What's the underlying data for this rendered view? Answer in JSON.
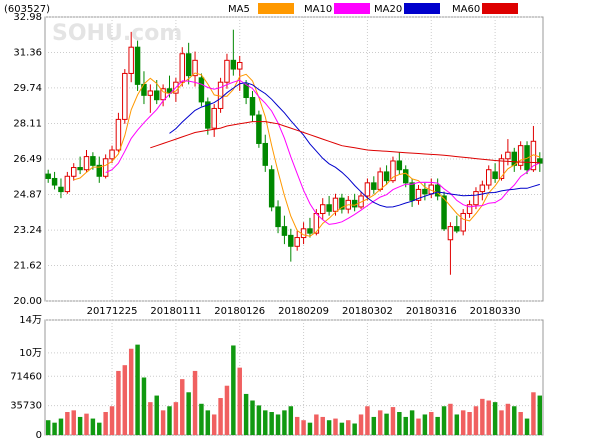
{
  "chart_data": {
    "type": "candlestick",
    "code": "(603527)",
    "watermark": "SOHU.com",
    "up_color": "#e00000",
    "down_color": "#008800",
    "categories": [
      null,
      null,
      null,
      null,
      null,
      null,
      null,
      null,
      null,
      null,
      "20171225",
      null,
      null,
      null,
      null,
      null,
      null,
      null,
      null,
      null,
      "20180111",
      null,
      null,
      null,
      null,
      null,
      null,
      null,
      null,
      null,
      "20180126",
      null,
      null,
      null,
      null,
      null,
      null,
      null,
      null,
      null,
      "20180209",
      null,
      null,
      null,
      null,
      null,
      null,
      null,
      null,
      null,
      "20180302",
      null,
      null,
      null,
      null,
      null,
      null,
      null,
      null,
      null,
      "20180316",
      null,
      null,
      null,
      null,
      null,
      null,
      null,
      null,
      null,
      "20180330",
      null,
      null,
      null,
      null,
      null,
      null,
      null
    ],
    "open": [
      25.8,
      25.6,
      25.2,
      25.0,
      25.7,
      26.1,
      26.0,
      26.6,
      26.2,
      25.7,
      26.5,
      26.9,
      28.3,
      30.4,
      31.6,
      29.9,
      29.4,
      29.6,
      29.2,
      29.7,
      29.5,
      30.0,
      31.3,
      30.3,
      30.2,
      29.1,
      27.9,
      28.8,
      30.0,
      31.0,
      30.6,
      29.9,
      29.3,
      28.5,
      27.2,
      26.0,
      24.3,
      23.4,
      23.0,
      22.5,
      22.9,
      23.3,
      23.1,
      24.0,
      24.4,
      24.1,
      24.7,
      24.2,
      24.6,
      24.3,
      24.8,
      25.4,
      25.1,
      25.9,
      25.5,
      26.4,
      26.0,
      25.4,
      24.6,
      25.1,
      24.9,
      25.3,
      24.8,
      22.8,
      23.4,
      23.2,
      24.0,
      24.4,
      25.0,
      25.3,
      25.9,
      25.6,
      26.5,
      26.8,
      26.2,
      27.1,
      26.0,
      26.5
    ],
    "high": [
      26.0,
      25.9,
      25.6,
      25.9,
      26.3,
      26.6,
      26.9,
      26.8,
      26.6,
      26.7,
      27.1,
      28.6,
      30.6,
      32.3,
      31.9,
      30.5,
      29.9,
      30.1,
      29.9,
      30.3,
      30.2,
      31.6,
      31.8,
      31.4,
      30.4,
      29.3,
      29.0,
      30.2,
      31.3,
      32.4,
      31.2,
      30.1,
      29.6,
      28.7,
      27.6,
      26.2,
      24.6,
      23.9,
      23.3,
      23.2,
      23.6,
      23.8,
      24.2,
      24.7,
      24.8,
      24.9,
      24.9,
      24.8,
      24.9,
      25.0,
      25.6,
      25.7,
      26.1,
      26.2,
      26.6,
      26.8,
      26.2,
      25.6,
      25.3,
      25.4,
      25.6,
      25.6,
      25.0,
      23.6,
      23.9,
      24.2,
      24.6,
      25.2,
      25.5,
      26.2,
      26.3,
      26.7,
      27.4,
      27.0,
      27.3,
      27.3,
      28.0,
      26.8
    ],
    "low": [
      25.4,
      25.1,
      24.7,
      24.9,
      25.5,
      25.8,
      25.9,
      26.0,
      25.4,
      25.6,
      26.3,
      26.8,
      28.1,
      30.0,
      29.6,
      29.0,
      28.6,
      29.0,
      28.9,
      29.3,
      29.1,
      29.8,
      29.9,
      29.8,
      28.9,
      27.6,
      27.5,
      28.6,
      29.7,
      30.3,
      29.6,
      29.0,
      28.2,
      27.0,
      25.9,
      24.1,
      23.1,
      22.6,
      21.8,
      22.3,
      22.6,
      22.9,
      23.0,
      23.7,
      23.9,
      23.9,
      24.0,
      24.0,
      24.1,
      24.2,
      24.6,
      24.9,
      25.0,
      25.3,
      25.4,
      25.8,
      25.2,
      24.3,
      24.4,
      24.6,
      24.7,
      24.6,
      23.2,
      21.2,
      23.1,
      23.0,
      23.8,
      24.2,
      24.6,
      25.1,
      25.4,
      25.5,
      26.2,
      25.9,
      26.0,
      25.8,
      25.9,
      25.9
    ],
    "close": [
      25.6,
      25.3,
      25.0,
      25.7,
      26.1,
      26.0,
      26.6,
      26.2,
      25.7,
      26.5,
      26.9,
      28.3,
      30.4,
      31.6,
      29.9,
      29.4,
      29.6,
      29.2,
      29.7,
      29.5,
      30.0,
      31.3,
      30.3,
      31.0,
      29.1,
      27.9,
      28.8,
      30.0,
      31.0,
      30.6,
      30.9,
      29.3,
      28.5,
      27.2,
      26.2,
      24.3,
      23.4,
      23.0,
      22.5,
      22.9,
      23.3,
      23.1,
      24.0,
      24.4,
      24.1,
      24.7,
      24.2,
      24.6,
      24.3,
      24.8,
      25.4,
      25.1,
      25.9,
      25.5,
      26.4,
      26.0,
      25.4,
      24.6,
      25.1,
      24.9,
      25.3,
      24.8,
      23.3,
      23.4,
      23.2,
      24.0,
      24.4,
      25.0,
      25.3,
      26.0,
      25.6,
      26.5,
      26.8,
      26.2,
      27.1,
      26.0,
      27.3,
      26.3
    ],
    "ylim": [
      20,
      32.98
    ],
    "yticks": [
      {
        "value": 20,
        "label": "20.00"
      },
      21.62,
      23.24,
      24.87,
      26.49,
      28.11,
      29.74,
      31.36,
      32.98
    ],
    "series": [
      {
        "name": "MA5",
        "color": "#ff9900",
        "values": [
          null,
          null,
          null,
          null,
          25.54,
          25.62,
          25.88,
          26.12,
          26.12,
          26.2,
          26.38,
          26.72,
          27.56,
          28.74,
          29.42,
          29.92,
          30.18,
          29.94,
          29.56,
          29.48,
          29.6,
          29.94,
          30.16,
          30.42,
          30.34,
          29.92,
          29.42,
          29.36,
          29.36,
          29.66,
          30.26,
          30.36,
          30.06,
          29.3,
          28.42,
          27.1,
          25.92,
          24.82,
          23.88,
          23.22,
          23.02,
          22.96,
          23.16,
          23.54,
          23.78,
          24.06,
          24.28,
          24.4,
          24.38,
          24.52,
          24.66,
          24.84,
          25.1,
          25.34,
          25.66,
          25.78,
          25.84,
          25.58,
          25.5,
          25.2,
          25.06,
          24.94,
          24.68,
          24.34,
          24.0,
          23.74,
          23.66,
          24.0,
          24.38,
          24.94,
          25.26,
          25.68,
          26.04,
          26.22,
          26.44,
          26.52,
          26.68,
          26.58
        ]
      },
      {
        "name": "MA10",
        "color": "#ff00ff",
        "values": [
          null,
          null,
          null,
          null,
          null,
          null,
          null,
          null,
          null,
          25.87,
          26.0,
          26.3,
          26.84,
          27.43,
          27.81,
          28.15,
          28.45,
          28.75,
          29.15,
          29.45,
          29.76,
          30.06,
          30.05,
          29.99,
          29.91,
          29.76,
          29.68,
          29.76,
          29.89,
          30.0,
          30.09,
          29.89,
          29.71,
          29.33,
          29.04,
          28.68,
          28.14,
          27.44,
          26.59,
          25.82,
          25.06,
          24.44,
          23.99,
          23.71,
          23.5,
          23.54,
          23.62,
          23.78,
          23.96,
          24.15,
          24.36,
          24.56,
          24.75,
          24.86,
          25.09,
          25.22,
          25.34,
          25.34,
          25.42,
          25.43,
          25.42,
          25.39,
          25.13,
          24.92,
          24.6,
          24.4,
          24.3,
          24.34,
          24.36,
          24.47,
          24.5,
          24.67,
          25.02,
          25.3,
          25.69,
          25.89,
          26.18,
          26.31
        ]
      },
      {
        "name": "MA20",
        "color": "#0000cc",
        "values": [
          null,
          null,
          null,
          null,
          null,
          null,
          null,
          null,
          null,
          null,
          null,
          null,
          null,
          null,
          null,
          null,
          null,
          null,
          null,
          27.66,
          27.88,
          28.18,
          28.45,
          28.71,
          28.86,
          28.96,
          29.07,
          29.26,
          29.52,
          29.73,
          29.93,
          29.98,
          29.88,
          29.66,
          29.48,
          29.22,
          28.91,
          28.6,
          28.24,
          27.91,
          27.58,
          27.17,
          26.85,
          26.52,
          26.27,
          26.11,
          25.88,
          25.61,
          25.28,
          24.99,
          24.71,
          24.5,
          24.37,
          24.29,
          24.3,
          24.38,
          24.48,
          24.56,
          24.69,
          24.79,
          24.89,
          24.98,
          24.94,
          24.89,
          24.85,
          24.81,
          24.82,
          24.84,
          24.89,
          24.95,
          24.96,
          25.03,
          25.08,
          25.11,
          25.15,
          25.15,
          25.24,
          25.33
        ]
      },
      {
        "name": "MA60",
        "color": "#dd0000",
        "values": [
          null,
          null,
          null,
          null,
          null,
          null,
          null,
          null,
          null,
          null,
          null,
          null,
          null,
          null,
          null,
          null,
          27.0,
          27.1,
          27.2,
          27.3,
          27.4,
          27.5,
          27.6,
          27.7,
          27.75,
          27.8,
          27.85,
          27.9,
          28.0,
          28.05,
          28.1,
          28.15,
          28.2,
          28.2,
          28.2,
          28.15,
          28.1,
          28.0,
          27.9,
          27.8,
          27.7,
          27.6,
          27.5,
          27.4,
          27.3,
          27.2,
          27.1,
          27.05,
          27.0,
          26.95,
          26.9,
          26.88,
          26.86,
          26.84,
          26.82,
          26.8,
          26.78,
          26.76,
          26.74,
          26.72,
          26.7,
          26.68,
          26.66,
          26.63,
          26.6,
          26.57,
          26.54,
          26.51,
          26.48,
          26.45,
          26.42,
          26.4,
          26.38,
          26.36,
          26.35,
          26.34,
          26.33,
          26.32
        ]
      }
    ],
    "volume": {
      "values": [
        18000,
        15000,
        20000,
        28000,
        30000,
        22000,
        26000,
        20000,
        15000,
        28000,
        35000,
        78000,
        85000,
        105000,
        110000,
        70000,
        40000,
        48000,
        30000,
        35000,
        40000,
        68000,
        52000,
        78000,
        38000,
        30000,
        25000,
        45000,
        60000,
        109000,
        82000,
        50000,
        42000,
        36000,
        30000,
        28000,
        25000,
        30000,
        35000,
        22000,
        18000,
        15000,
        25000,
        22000,
        18000,
        20000,
        15000,
        18000,
        14000,
        25000,
        35000,
        22000,
        30000,
        26000,
        34000,
        28000,
        22000,
        30000,
        20000,
        25000,
        28000,
        22000,
        35000,
        38000,
        25000,
        30000,
        28000,
        35000,
        44000,
        42000,
        40000,
        30000,
        38000,
        35000,
        28000,
        20000,
        52000,
        48000
      ],
      "ylim": [
        0,
        140000
      ],
      "yticks": [
        0,
        35730,
        71460,
        {
          "value": 100000,
          "label": "10万"
        },
        {
          "value": 140000,
          "label": "14万"
        }
      ]
    }
  }
}
